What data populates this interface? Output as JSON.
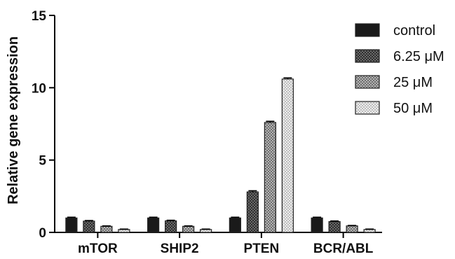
{
  "chart_data": {
    "type": "bar",
    "title": "",
    "xlabel": "",
    "ylabel": "Relative gene expression",
    "ylim": [
      0,
      15
    ],
    "yticks": [
      0,
      5,
      10,
      15
    ],
    "categories": [
      "mTOR",
      "SHIP2",
      "PTEN",
      "BCR/ABL"
    ],
    "series": [
      {
        "name": "control",
        "values": [
          1.0,
          1.0,
          1.0,
          1.0
        ],
        "errors": [
          0.05,
          0.05,
          0.05,
          0.05
        ],
        "fill": "solid",
        "color": "#1a1a1a"
      },
      {
        "name": "6.25 μM",
        "values": [
          0.78,
          0.8,
          2.8,
          0.75
        ],
        "errors": [
          0.04,
          0.04,
          0.08,
          0.04
        ],
        "fill": "dense-checker",
        "color": "#4a4a4a"
      },
      {
        "name": "25 μM",
        "values": [
          0.42,
          0.42,
          7.6,
          0.45
        ],
        "errors": [
          0.03,
          0.03,
          0.08,
          0.03
        ],
        "fill": "medium-checker",
        "color": "#8a8a8a"
      },
      {
        "name": "50 μM",
        "values": [
          0.2,
          0.2,
          10.6,
          0.2
        ],
        "errors": [
          0.03,
          0.03,
          0.08,
          0.03
        ],
        "fill": "light-checker",
        "color": "#d0d0d0"
      }
    ],
    "grid": false,
    "legend_position": "top-right"
  }
}
